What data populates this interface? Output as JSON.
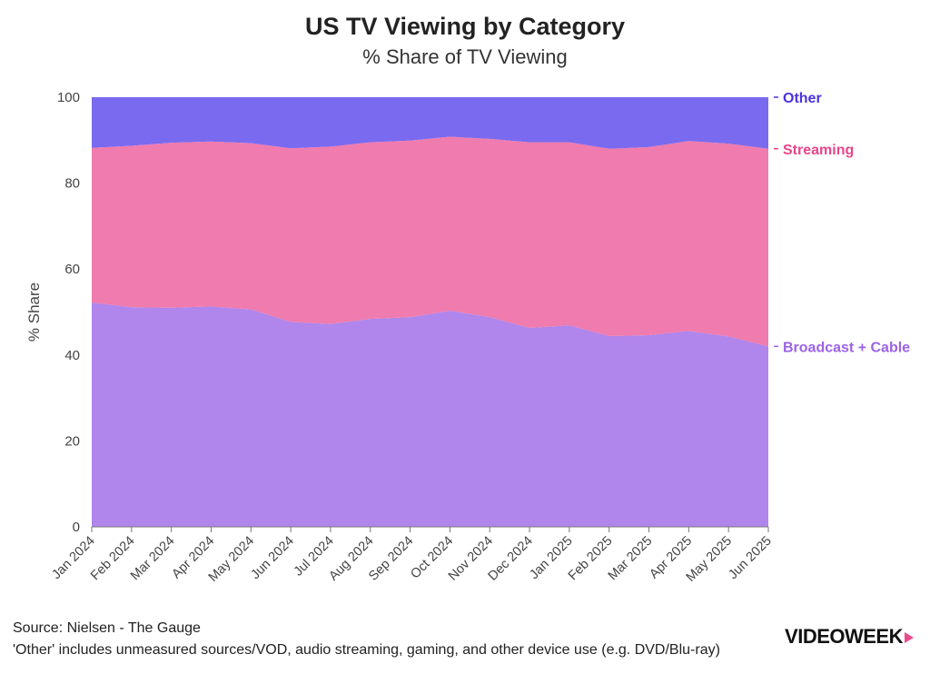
{
  "chart_data": {
    "type": "area",
    "stacked": true,
    "title": "US TV Viewing by Category",
    "subtitle": "% Share of TV Viewing",
    "xlabel": "",
    "ylabel": "% Share",
    "ylim": [
      0,
      100
    ],
    "yticks": [
      0,
      20,
      40,
      60,
      80,
      100
    ],
    "grid": false,
    "legend": "right-end labels",
    "categories": [
      "Jan 2024",
      "Feb 2024",
      "Mar 2024",
      "Apr 2024",
      "May 2024",
      "Jun 2024",
      "Jul 2024",
      "Aug 2024",
      "Sep 2024",
      "Oct 2024",
      "Nov 2024",
      "Dec 2024",
      "Jan 2025",
      "Feb 2025",
      "Mar 2025",
      "Apr 2025",
      "May 2025",
      "Jun 2025"
    ],
    "series": [
      {
        "name": "Broadcast + Cable",
        "color": "#b085ec",
        "label_color": "#9b62e6",
        "values": [
          52.2,
          51.1,
          51.0,
          51.3,
          50.6,
          47.7,
          47.2,
          48.4,
          48.8,
          50.3,
          48.8,
          46.3,
          46.9,
          44.4,
          44.6,
          45.6,
          44.3,
          42.0
        ]
      },
      {
        "name": "Streaming",
        "color": "#f07bae",
        "label_color": "#e8458a",
        "values": [
          36.0,
          37.6,
          38.4,
          38.4,
          38.7,
          40.4,
          41.3,
          41.1,
          41.1,
          40.5,
          41.5,
          43.2,
          42.6,
          43.6,
          43.8,
          44.2,
          44.9,
          46.0
        ]
      },
      {
        "name": "Other",
        "color": "#7a6aef",
        "label_color": "#4a34e0",
        "values": [
          11.8,
          11.3,
          10.6,
          10.3,
          10.7,
          11.9,
          11.5,
          10.5,
          10.1,
          9.2,
          9.7,
          10.5,
          10.5,
          12.0,
          11.6,
          10.2,
          10.8,
          12.0
        ]
      }
    ]
  },
  "footer": {
    "source": "Source: Nielsen - The Gauge",
    "note": "'Other' includes unmeasured sources/VOD, audio streaming, gaming, and other device use (e.g. DVD/Blu-ray)"
  },
  "brand": {
    "name": "VIDEOWEEK"
  }
}
